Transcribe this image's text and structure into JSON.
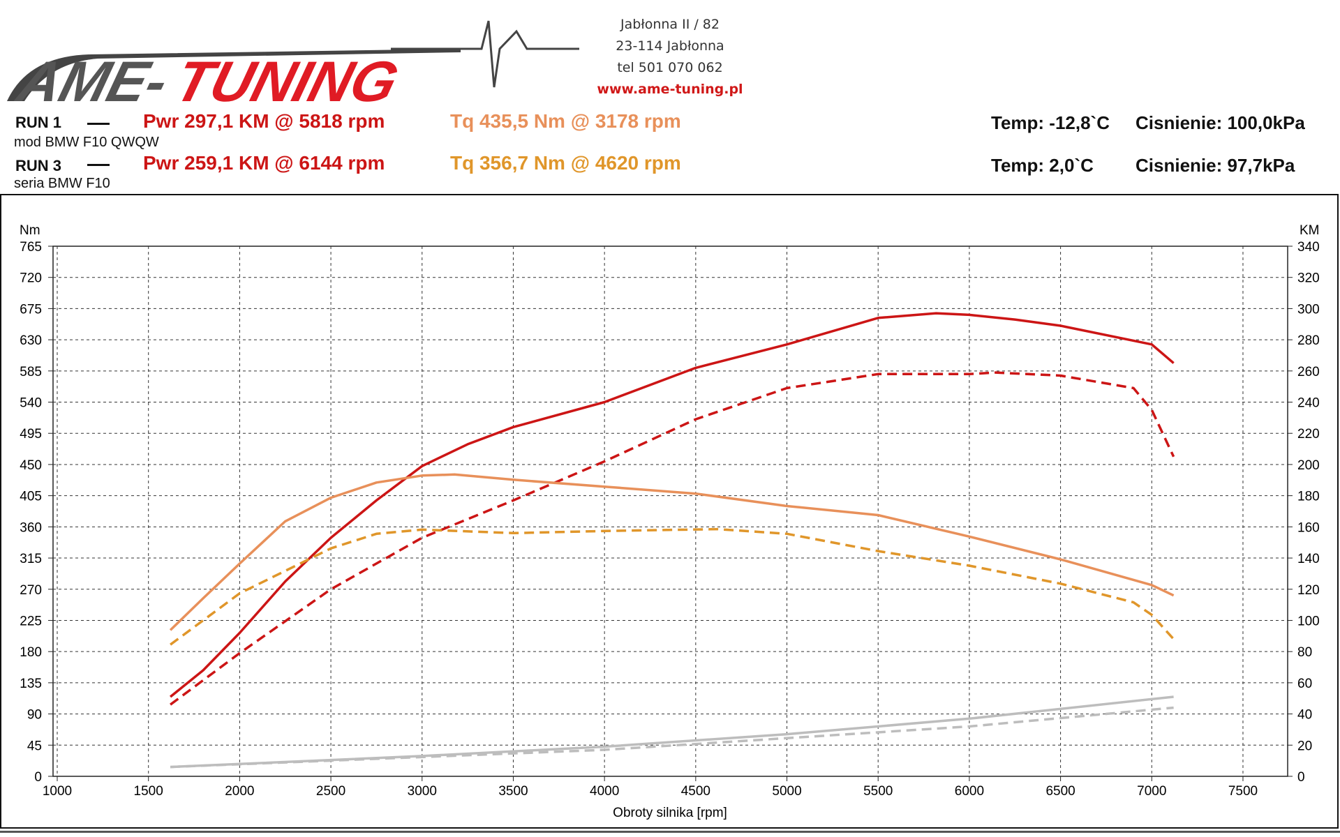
{
  "brand": {
    "logo_text": "AME-TUNING",
    "address": [
      "Jabłonna II / 82",
      "23-114 Jabłonna",
      "tel 501 070 062"
    ],
    "website": "www.ame-tuning.pl"
  },
  "runs": [
    {
      "label": "RUN 1",
      "desc": "mod BMW F10 QWQW",
      "pwr": "Pwr  297,1 KM @ 5818 rpm",
      "tq": "Tq 435,5 Nm @ 3178 rpm",
      "temp": "Temp: -12,8`C",
      "press": "Cisnienie: 100,0kPa"
    },
    {
      "label": "RUN 3",
      "desc": "seria BMW F10",
      "pwr": "Pwr  259,1 KM @ 6144 rpm",
      "tq": "Tq 356,7 Nm @ 4620 rpm",
      "temp": "Temp: 2,0`C",
      "press": "Cisnienie: 97,7kPa"
    }
  ],
  "colors": {
    "power": "#cc1515",
    "torque1": "#e8905a",
    "torque3": "#e0962a",
    "loss": "#bdbdbd"
  },
  "chart_data": {
    "type": "line",
    "xlabel": "Obroty silnika [rpm]",
    "ylabel_left": "Nm",
    "ylabel_right": "KM",
    "xlim": [
      977,
      7745
    ],
    "ylim_left": [
      0,
      765
    ],
    "ylim_right": [
      0,
      340
    ],
    "xticks": [
      1000,
      1500,
      2000,
      2500,
      3000,
      3500,
      4000,
      4500,
      5000,
      5500,
      6000,
      6500,
      7000,
      7500
    ],
    "yticks_left": [
      0,
      45,
      90,
      135,
      180,
      225,
      270,
      315,
      360,
      405,
      450,
      495,
      540,
      585,
      630,
      675,
      720,
      765
    ],
    "yticks_right": [
      0,
      20,
      40,
      60,
      80,
      100,
      120,
      140,
      160,
      180,
      200,
      220,
      240,
      260,
      280,
      300,
      320,
      340
    ],
    "grid": true,
    "series": [
      {
        "name": "RUN 1 Power",
        "axis": "right",
        "dash": false,
        "color": "power",
        "x": [
          1620,
          1800,
          2000,
          2250,
          2500,
          2750,
          3000,
          3250,
          3500,
          4000,
          4500,
          5000,
          5500,
          5818,
          6000,
          6250,
          6500,
          7000,
          7120
        ],
        "y": [
          51,
          68,
          92,
          125,
          153,
          177,
          199,
          213,
          224,
          240,
          262,
          277,
          294,
          297,
          296,
          293,
          289,
          277,
          265
        ]
      },
      {
        "name": "RUN 3 Power",
        "axis": "right",
        "dash": true,
        "color": "power",
        "x": [
          1620,
          2000,
          2500,
          3000,
          3500,
          4000,
          4500,
          5000,
          5500,
          6000,
          6144,
          6500,
          6900,
          7000,
          7120
        ],
        "y": [
          46,
          79,
          120,
          153,
          177,
          202,
          229,
          249,
          258,
          258,
          259,
          257,
          249,
          235,
          205
        ]
      },
      {
        "name": "RUN 1 Torque",
        "axis": "left",
        "dash": false,
        "color": "torque1",
        "x": [
          1620,
          1800,
          2000,
          2250,
          2500,
          2750,
          3000,
          3178,
          3500,
          4000,
          4500,
          5000,
          5500,
          6000,
          6500,
          7000,
          7120
        ],
        "y": [
          211,
          257,
          307,
          368,
          402,
          424,
          434,
          435.5,
          428,
          418,
          408,
          390,
          377,
          346,
          313,
          276,
          261
        ]
      },
      {
        "name": "RUN 3 Torque",
        "axis": "left",
        "dash": true,
        "color": "torque3",
        "x": [
          1620,
          2000,
          2500,
          2750,
          3000,
          3500,
          4000,
          4620,
          5000,
          5500,
          6000,
          6500,
          6900,
          7000,
          7120
        ],
        "y": [
          190,
          264,
          329,
          350,
          356,
          351,
          354,
          356.7,
          350,
          325,
          304,
          278,
          251,
          233,
          198
        ]
      },
      {
        "name": "RUN 1 Loss",
        "axis": "right",
        "dash": false,
        "color": "loss",
        "x": [
          1620,
          3000,
          4000,
          5000,
          6000,
          7120
        ],
        "y": [
          6,
          13,
          19,
          27,
          37,
          51
        ]
      },
      {
        "name": "RUN 3 Loss",
        "axis": "right",
        "dash": true,
        "color": "loss",
        "x": [
          1620,
          4000,
          6000,
          7120
        ],
        "y": [
          6,
          17,
          32,
          44
        ]
      }
    ]
  }
}
